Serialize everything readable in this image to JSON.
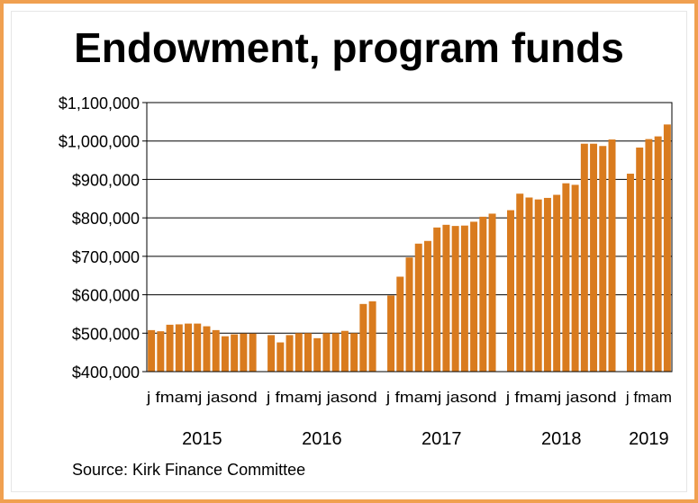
{
  "chart_data": {
    "type": "bar",
    "title": "Endowment, program funds",
    "source": "Source: Kirk Finance Committee",
    "ylim": [
      400000,
      1100000
    ],
    "y_ticks": [
      {
        "value": 400000,
        "label": "$400,000"
      },
      {
        "value": 500000,
        "label": "$500,000"
      },
      {
        "value": 600000,
        "label": "$600,000"
      },
      {
        "value": 700000,
        "label": "$700,000"
      },
      {
        "value": 800000,
        "label": "$800,000"
      },
      {
        "value": 900000,
        "label": "$900,000"
      },
      {
        "value": 1000000,
        "label": "$1,000,000"
      },
      {
        "value": 1100000,
        "label": "$1,100,000"
      }
    ],
    "grid": "horizontal",
    "bar_color": "#d97b1e",
    "years": [
      {
        "label": "2015",
        "month_labels": "j fmamj jasond",
        "values": [
          508000,
          505000,
          522000,
          523000,
          525000,
          525000,
          518000,
          508000,
          492000,
          497000,
          499000,
          499000
        ]
      },
      {
        "label": "2016",
        "month_labels": "j fmamj jasond",
        "values": [
          495000,
          476000,
          495000,
          500000,
          500000,
          487000,
          500000,
          500000,
          506000,
          500000,
          576000,
          583000
        ]
      },
      {
        "label": "2017",
        "month_labels": "j fmamj jasond",
        "values": [
          598000,
          647000,
          697000,
          733000,
          740000,
          775000,
          782000,
          779000,
          780000,
          790000,
          803000,
          811000
        ]
      },
      {
        "label": "2018",
        "month_labels": "j fmamj jasond",
        "values": [
          820000,
          863000,
          853000,
          848000,
          852000,
          860000,
          890000,
          886000,
          993000,
          993000,
          987000,
          1004000
        ]
      },
      {
        "label": "2019",
        "month_labels": "j fmam",
        "values": [
          915000,
          983000,
          1005000,
          1012000,
          1043000
        ]
      }
    ]
  }
}
